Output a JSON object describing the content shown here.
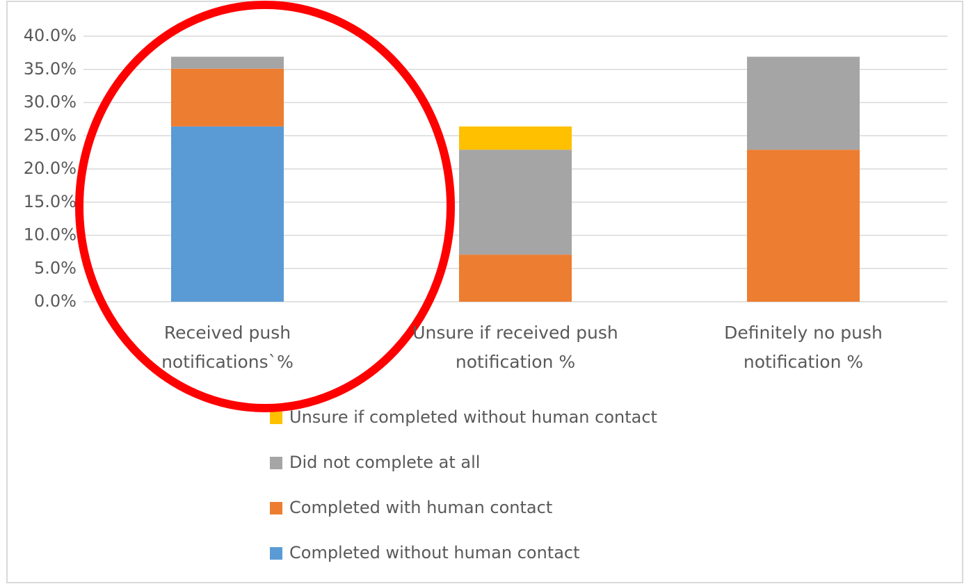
{
  "chart_data": {
    "type": "stacked_bar",
    "categories": [
      "Received push notifications`%",
      "Unsure if received push notification %",
      "Definitely no push notification %"
    ],
    "series": [
      {
        "name": "Completed without human contact",
        "color": "#5b9bd5",
        "values": [
          26.4,
          0,
          0
        ]
      },
      {
        "name": "Completed with human contact",
        "color": "#ed7d31",
        "values": [
          8.7,
          7.1,
          22.9
        ]
      },
      {
        "name": "Did not complete at all",
        "color": "#a5a5a5",
        "values": [
          1.8,
          15.8,
          14.0
        ]
      },
      {
        "name": "Unsure if completed without human contact",
        "color": "#ffc000",
        "values": [
          0,
          3.5,
          0
        ]
      }
    ],
    "ylim": [
      0,
      40
    ],
    "yticks": [
      {
        "value": 0,
        "label": "0.0%"
      },
      {
        "value": 5,
        "label": "5.0%"
      },
      {
        "value": 10,
        "label": "10.0%"
      },
      {
        "value": 15,
        "label": "15.0%"
      },
      {
        "value": 20,
        "label": "20.0%"
      },
      {
        "value": 25,
        "label": "25.0%"
      },
      {
        "value": 30,
        "label": "30.0%"
      },
      {
        "value": 35,
        "label": "35.0%"
      },
      {
        "value": 40,
        "label": "40.0%"
      }
    ],
    "grid": true,
    "legend": "bottom"
  }
}
